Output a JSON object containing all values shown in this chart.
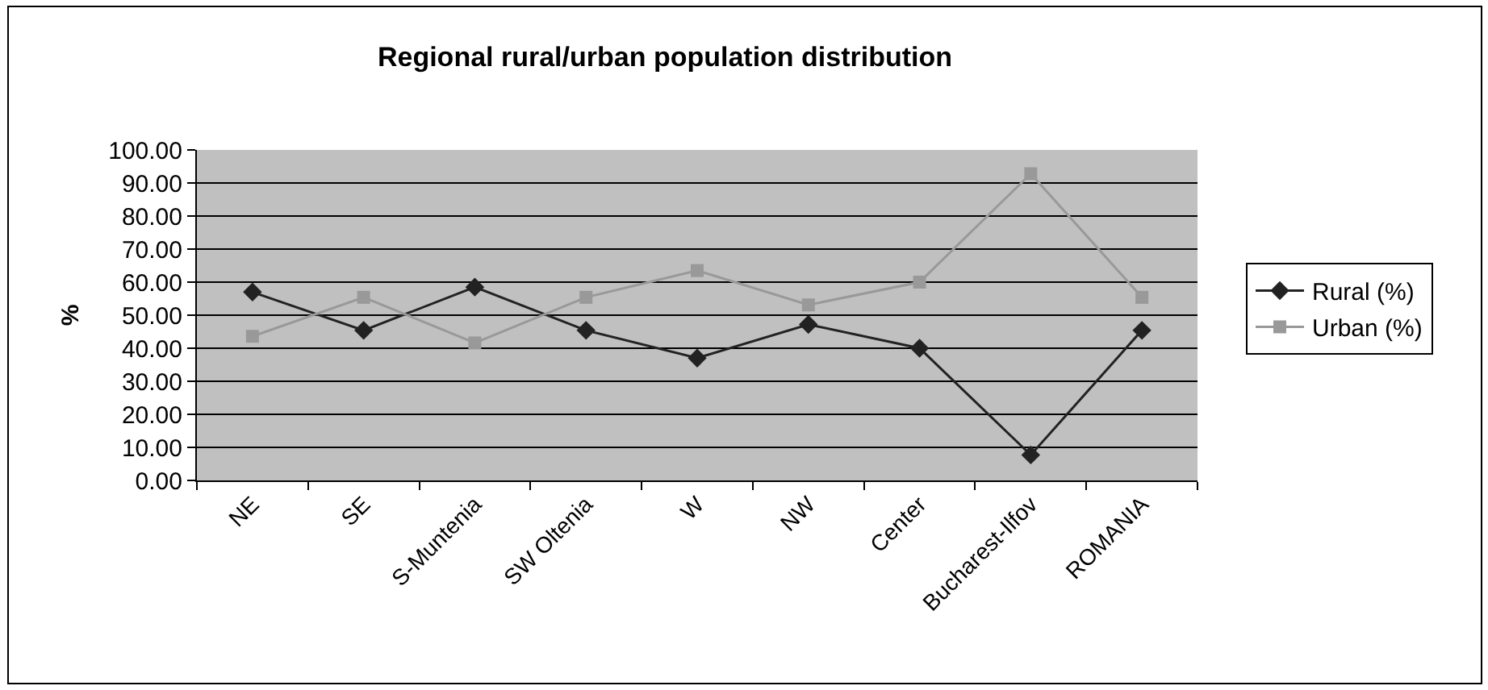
{
  "chart_data": {
    "type": "line",
    "title": "Regional rural/urban population distribution",
    "ylabel": "%",
    "categories": [
      "NE",
      "SE",
      "S-Muntenia",
      "SW Oltenia",
      "W",
      "NW",
      "Center",
      "Bucharest-Ilfov",
      "ROMANIA"
    ],
    "series": [
      {
        "name": "Rural (%)",
        "color": "#222222",
        "marker": "diamond",
        "values": [
          57,
          45.4,
          58.5,
          45.4,
          37,
          47.2,
          40,
          7.7,
          45.4
        ]
      },
      {
        "name": "Urban (%)",
        "color": "#999999",
        "marker": "square",
        "values": [
          43.6,
          55.4,
          41.6,
          55.4,
          63.5,
          53.1,
          60,
          92.8,
          55.4
        ]
      }
    ],
    "ylim": [
      0,
      100
    ],
    "yticks": [
      {
        "value": 0,
        "label": "0.00"
      },
      {
        "value": 10,
        "label": "10.00"
      },
      {
        "value": 20,
        "label": "20.00"
      },
      {
        "value": 30,
        "label": "30.00"
      },
      {
        "value": 40,
        "label": "40.00"
      },
      {
        "value": 50,
        "label": "50.00"
      },
      {
        "value": 60,
        "label": "60.00"
      },
      {
        "value": 70,
        "label": "70.00"
      },
      {
        "value": 80,
        "label": "80.00"
      },
      {
        "value": 90,
        "label": "90.00"
      },
      {
        "value": 100,
        "label": "100.00"
      }
    ],
    "grid": "y",
    "legend": "right",
    "line_style": "solid"
  }
}
